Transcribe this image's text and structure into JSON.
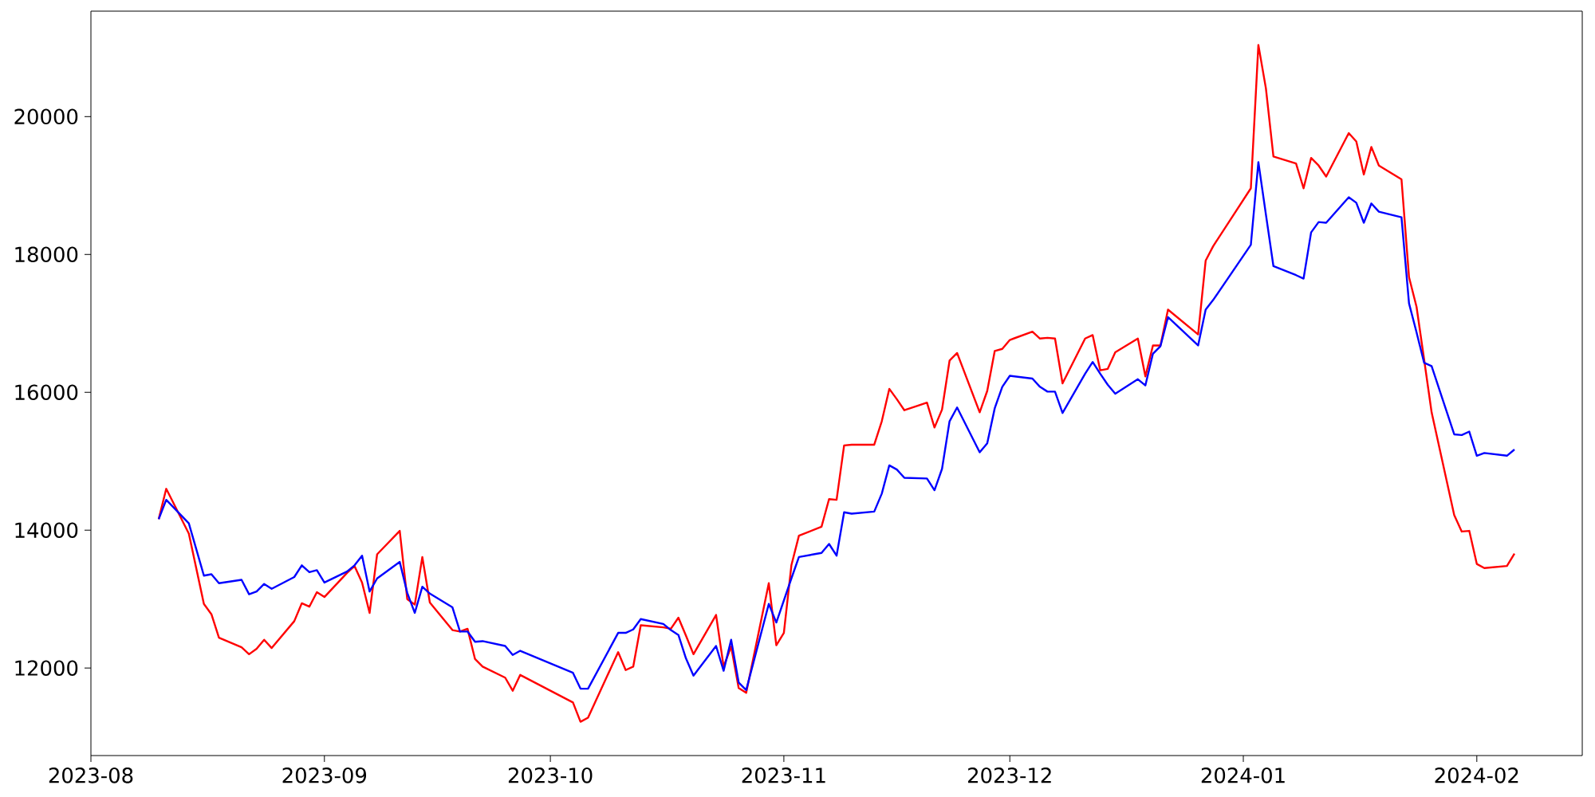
{
  "chart_data": {
    "type": "line",
    "x": [
      "2023-08-10",
      "2023-08-11",
      "2023-08-14",
      "2023-08-16",
      "2023-08-17",
      "2023-08-18",
      "2023-08-21",
      "2023-08-22",
      "2023-08-23",
      "2023-08-24",
      "2023-08-25",
      "2023-08-28",
      "2023-08-29",
      "2023-08-30",
      "2023-08-31",
      "2023-09-01",
      "2023-09-04",
      "2023-09-05",
      "2023-09-06",
      "2023-09-07",
      "2023-09-08",
      "2023-09-11",
      "2023-09-12",
      "2023-09-13",
      "2023-09-14",
      "2023-09-15",
      "2023-09-18",
      "2023-09-19",
      "2023-09-20",
      "2023-09-21",
      "2023-09-22",
      "2023-09-25",
      "2023-09-26",
      "2023-09-27",
      "2023-10-04",
      "2023-10-05",
      "2023-10-06",
      "2023-10-10",
      "2023-10-11",
      "2023-10-12",
      "2023-10-13",
      "2023-10-16",
      "2023-10-17",
      "2023-10-18",
      "2023-10-19",
      "2023-10-20",
      "2023-10-23",
      "2023-10-24",
      "2023-10-25",
      "2023-10-26",
      "2023-10-27",
      "2023-10-30",
      "2023-10-31",
      "2023-11-01",
      "2023-11-02",
      "2023-11-03",
      "2023-11-06",
      "2023-11-07",
      "2023-11-08",
      "2023-11-09",
      "2023-11-10",
      "2023-11-13",
      "2023-11-14",
      "2023-11-15",
      "2023-11-16",
      "2023-11-17",
      "2023-11-20",
      "2023-11-21",
      "2023-11-22",
      "2023-11-23",
      "2023-11-24",
      "2023-11-27",
      "2023-11-28",
      "2023-11-29",
      "2023-11-30",
      "2023-12-01",
      "2023-12-04",
      "2023-12-05",
      "2023-12-06",
      "2023-12-07",
      "2023-12-08",
      "2023-12-11",
      "2023-12-12",
      "2023-12-13",
      "2023-12-14",
      "2023-12-15",
      "2023-12-18",
      "2023-12-19",
      "2023-12-20",
      "2023-12-21",
      "2023-12-22",
      "2023-12-26",
      "2023-12-27",
      "2023-12-28",
      "2024-01-02",
      "2024-01-03",
      "2024-01-04",
      "2024-01-05",
      "2024-01-08",
      "2024-01-09",
      "2024-01-10",
      "2024-01-11",
      "2024-01-12",
      "2024-01-15",
      "2024-01-16",
      "2024-01-17",
      "2024-01-18",
      "2024-01-19",
      "2024-01-22",
      "2024-01-23",
      "2024-01-24",
      "2024-01-25",
      "2024-01-26",
      "2024-01-29",
      "2024-01-30",
      "2024-01-31",
      "2024-02-01",
      "2024-02-02",
      "2024-02-05",
      "2024-02-06"
    ],
    "series": [
      {
        "color": "#ff0000",
        "values": [
          14160,
          14600,
          13950,
          12930,
          12780,
          12440,
          12300,
          12200,
          12280,
          12410,
          12290,
          12680,
          12940,
          12890,
          13100,
          13030,
          13380,
          13480,
          13240,
          12800,
          13650,
          13990,
          13000,
          12920,
          13610,
          12950,
          12550,
          12530,
          12570,
          12130,
          12020,
          11860,
          11670,
          11900,
          11500,
          11220,
          11280,
          12230,
          11970,
          12020,
          12620,
          12590,
          12570,
          12730,
          12470,
          12200,
          12770,
          12020,
          12310,
          11710,
          11640,
          13230,
          12330,
          12510,
          13490,
          13920,
          14050,
          14450,
          14440,
          15230,
          15240,
          15240,
          15580,
          16050,
          15900,
          15740,
          15850,
          15490,
          15750,
          16460,
          16570,
          15710,
          16020,
          16600,
          16630,
          16760,
          16880,
          16780,
          16790,
          16780,
          16130,
          16780,
          16830,
          16320,
          16340,
          16580,
          16780,
          16230,
          16680,
          16680,
          17200,
          16840,
          17910,
          18120,
          18960,
          21040,
          20410,
          19420,
          19320,
          18960,
          19400,
          19290,
          19130,
          19760,
          19640,
          19160,
          19560,
          19290,
          19090,
          17670,
          17240,
          16480,
          15710,
          14220,
          13980,
          13990,
          13510,
          13450,
          13480,
          13660
        ]
      },
      {
        "color": "#0000ff",
        "values": [
          14160,
          14440,
          14100,
          13340,
          13360,
          13230,
          13280,
          13070,
          13110,
          13220,
          13150,
          13320,
          13490,
          13390,
          13420,
          13240,
          13400,
          13490,
          13630,
          13110,
          13300,
          13540,
          13090,
          12800,
          13180,
          13080,
          12880,
          12530,
          12530,
          12380,
          12390,
          12320,
          12190,
          12250,
          11930,
          11700,
          11700,
          12510,
          12510,
          12560,
          12710,
          12640,
          12550,
          12480,
          12140,
          11890,
          12320,
          11960,
          12410,
          11790,
          11680,
          12930,
          12660,
          12980,
          13300,
          13610,
          13670,
          13800,
          13630,
          14260,
          14240,
          14270,
          14530,
          14940,
          14880,
          14760,
          14750,
          14580,
          14890,
          15580,
          15780,
          15130,
          15260,
          15770,
          16080,
          16240,
          16200,
          16080,
          16010,
          16010,
          15700,
          16270,
          16440,
          16270,
          16110,
          15980,
          16190,
          16100,
          16560,
          16670,
          17090,
          16680,
          17200,
          17340,
          18140,
          19340,
          18580,
          17830,
          17700,
          17650,
          18320,
          18470,
          18460,
          18830,
          18750,
          18460,
          18740,
          18620,
          18540,
          17290,
          16870,
          16430,
          16380,
          15390,
          15380,
          15430,
          15080,
          15120,
          15080,
          15170
        ]
      }
    ],
    "xlim": [
      "2023-08-01",
      "2024-02-15"
    ],
    "xticks": [
      {
        "value": "2023-08-01",
        "label": "2023-08"
      },
      {
        "value": "2023-09-01",
        "label": "2023-09"
      },
      {
        "value": "2023-10-01",
        "label": "2023-10"
      },
      {
        "value": "2023-11-01",
        "label": "2023-11"
      },
      {
        "value": "2023-12-01",
        "label": "2023-12"
      },
      {
        "value": "2024-01-01",
        "label": "2024-01"
      },
      {
        "value": "2024-02-01",
        "label": "2024-02"
      }
    ],
    "ylim": [
      10730,
      21530
    ],
    "yticks": [
      12000,
      14000,
      16000,
      18000,
      20000
    ],
    "grid": false
  }
}
